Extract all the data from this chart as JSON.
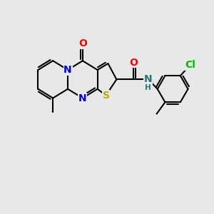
{
  "background_color": "#e8e8e8",
  "atom_colors": {
    "O": "#ff0000",
    "N": "#0000cc",
    "S": "#bbaa00",
    "Cl": "#00bb00",
    "C": "#000000",
    "H": "#227777"
  },
  "bond_color": "#000000",
  "bond_width": 1.5,
  "font_size_atom": 10,
  "font_size_small": 8.5
}
